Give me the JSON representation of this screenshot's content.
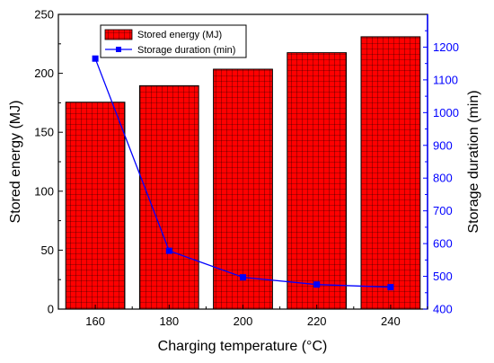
{
  "chart_data": {
    "type": "bar",
    "categories": [
      "160",
      "180",
      "200",
      "220",
      "240"
    ],
    "xlabel": "Charging temperature (°C)",
    "ylabel": "Stored energy (MJ)",
    "y2label": "Storage duration (min)",
    "ylim": [
      0,
      250
    ],
    "y2lim": [
      400,
      1300
    ],
    "yticks": [
      "0",
      "50",
      "100",
      "150",
      "200",
      "250"
    ],
    "y2ticks": [
      "400",
      "500",
      "600",
      "700",
      "800",
      "900",
      "1000",
      "1100",
      "1200"
    ],
    "series": [
      {
        "name": "Stored energy (MJ)",
        "kind": "bar",
        "axis": "left",
        "color": "#ff0000",
        "values": [
          175.5,
          189.5,
          203.5,
          217.5,
          231
        ]
      },
      {
        "name": "Storage duration (min)",
        "kind": "line",
        "axis": "right",
        "color": "#0000ff",
        "marker": "square",
        "values": [
          1165,
          578,
          497,
          475,
          467
        ]
      }
    ],
    "grid": false,
    "legend": "top-left"
  }
}
